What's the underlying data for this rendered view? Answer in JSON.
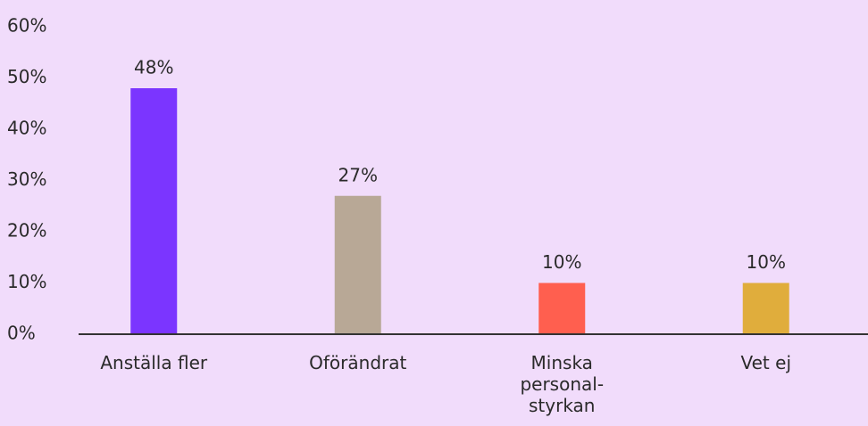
{
  "chart_data": {
    "type": "bar",
    "categories": [
      "Anställa fler",
      "Oförändrat",
      "Minska personal-styrkan",
      "Vet ej"
    ],
    "values": [
      48,
      27,
      10,
      10
    ],
    "value_labels": [
      "48%",
      "27%",
      "10%",
      "10%"
    ],
    "colors": [
      "#7b35ff",
      "#b8a896",
      "#ff5f4f",
      "#e0ad3c"
    ],
    "ylim": [
      0,
      60
    ],
    "yticks": [
      {
        "value": 0,
        "label": "0%"
      },
      {
        "value": 10,
        "label": "10%"
      },
      {
        "value": 20,
        "label": "20%"
      },
      {
        "value": 30,
        "label": "30%"
      },
      {
        "value": 40,
        "label": "40%"
      },
      {
        "value": 50,
        "label": "50%"
      },
      {
        "value": 60,
        "label": "60%"
      }
    ],
    "grid": false
  }
}
